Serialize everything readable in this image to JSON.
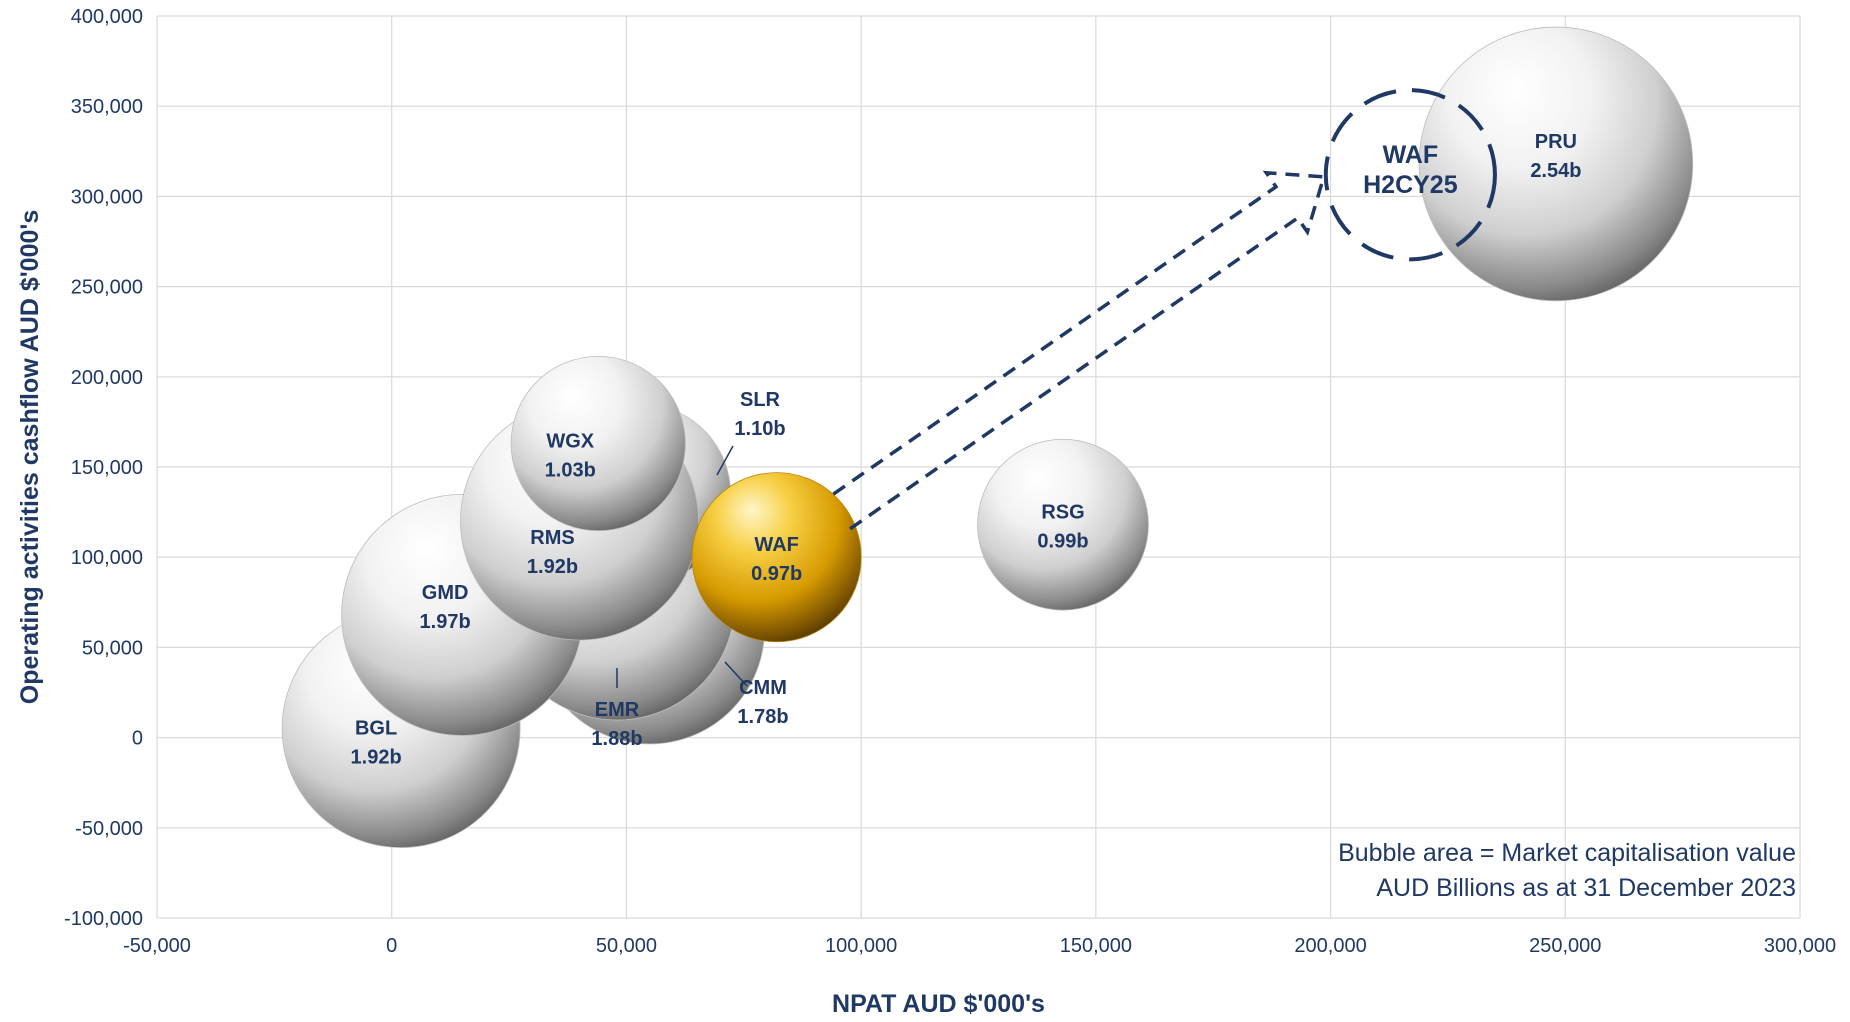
{
  "chart_data": {
    "type": "bubble",
    "xlabel": "NPAT AUD $'000's",
    "ylabel": "Operating activities cashflow AUD $'000's",
    "xlim": [
      -50000,
      300000
    ],
    "ylim": [
      -100000,
      400000
    ],
    "x_ticks": [
      "-50,000",
      "0",
      "50,000",
      "100,000",
      "150,000",
      "200,000",
      "250,000",
      "300,000"
    ],
    "y_ticks": [
      "-100,000",
      "-50,000",
      "0",
      "50,000",
      "100,000",
      "150,000",
      "200,000",
      "250,000",
      "300,000",
      "350,000",
      "400,000"
    ],
    "grid": true,
    "note": [
      "Bubble area = Market capitalisation value",
      "AUD Billions as at 31 December 2023"
    ],
    "bubbles": [
      {
        "name": "BGL",
        "value": "1.92b",
        "market_cap": 1.92,
        "x": 2000,
        "y": 5000,
        "color": "#d9d9d9"
      },
      {
        "name": "CMM",
        "value": "1.78b",
        "market_cap": 1.78,
        "x": 55000,
        "y": 60000,
        "color": "#d9d9d9"
      },
      {
        "name": "EMR",
        "value": "1.88b",
        "market_cap": 1.88,
        "x": 48000,
        "y": 75000,
        "color": "#d9d9d9"
      },
      {
        "name": "GMD",
        "value": "1.97b",
        "market_cap": 1.97,
        "x": 15000,
        "y": 68000,
        "color": "#d9d9d9"
      },
      {
        "name": "SLR",
        "value": "1.10b",
        "market_cap": 1.1,
        "x": 53000,
        "y": 135000,
        "color": "#d9d9d9"
      },
      {
        "name": "RMS",
        "value": "1.92b",
        "market_cap": 1.92,
        "x": 40000,
        "y": 120000,
        "color": "#d9d9d9"
      },
      {
        "name": "WGX",
        "value": "1.03b",
        "market_cap": 1.03,
        "x": 44000,
        "y": 163000,
        "color": "#d9d9d9"
      },
      {
        "name": "WAF",
        "value": "0.97b",
        "market_cap": 0.97,
        "x": 82000,
        "y": 100000,
        "color": "#f0b400"
      },
      {
        "name": "RSG",
        "value": "0.99b",
        "market_cap": 0.99,
        "x": 143000,
        "y": 118000,
        "color": "#d9d9d9"
      },
      {
        "name": "PRU",
        "value": "2.54b",
        "market_cap": 2.54,
        "x": 248000,
        "y": 318000,
        "color": "#d9d9d9"
      }
    ],
    "projection": {
      "name": "WAF",
      "period": "H2CY25",
      "x": 217000,
      "y": 312000,
      "style": "dashed",
      "color": "#1f3864"
    }
  }
}
